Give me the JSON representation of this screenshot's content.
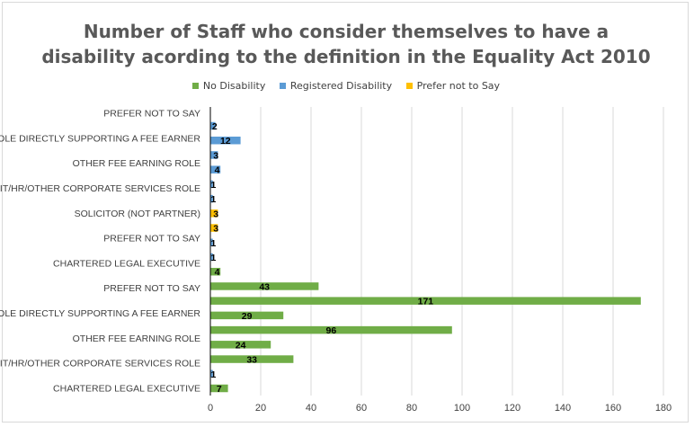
{
  "chart_data": {
    "type": "bar",
    "orientation": "horizontal",
    "title_lines": [
      "Number of Staff who consider themselves to have a",
      "disability acording to the definition in the Equality Act 2010"
    ],
    "legend_position": "top",
    "grid": true,
    "xlim": [
      0,
      180
    ],
    "x_ticks": [
      0,
      20,
      40,
      60,
      80,
      100,
      120,
      140,
      160,
      180
    ],
    "series": [
      {
        "name": "No Disability",
        "color": "#70ad47"
      },
      {
        "name": "Registered Disability",
        "color": "#5b9bd5"
      },
      {
        "name": "Prefer not to Say",
        "color": "#ffc000"
      }
    ],
    "categories": [
      {
        "label": "CHARTERED LEGAL EXECUTIVE",
        "values": [
          7,
          1,
          null
        ]
      },
      {
        "label": "IT/HR/OTHER CORPORATE SERVICES ROLE",
        "values": [
          33,
          24,
          null
        ]
      },
      {
        "label": "OTHER FEE EARNING ROLE",
        "values": [
          96,
          29,
          null
        ]
      },
      {
        "label": "ROLE DIRECTLY SUPPORTING A FEE EARNER",
        "values": [
          171,
          43,
          null
        ]
      },
      {
        "label": "PREFER NOT TO SAY",
        "values": [
          4,
          null,
          null
        ]
      },
      {
        "label": "CHARTERED LEGAL EXECUTIVE",
        "values": [
          1,
          1,
          null
        ]
      },
      {
        "label": "PREFER NOT TO SAY",
        "values": [
          3,
          3,
          null
        ]
      },
      {
        "label": "SOLICITOR (NOT PARTNER)",
        "values": [
          1,
          1,
          null
        ]
      },
      {
        "label": "IT/HR/OTHER CORPORATE SERVICES ROLE",
        "values": [
          4,
          3,
          null
        ]
      },
      {
        "label": "OTHER FEE EARNING ROLE",
        "values": [
          12,
          2,
          null
        ]
      },
      {
        "label": "ROLE DIRECTLY SUPPORTING A FEE EARNER",
        "values": [
          null,
          null,
          null
        ]
      },
      {
        "label": "PREFER NOT TO SAY",
        "values": [
          null,
          null,
          null
        ]
      }
    ],
    "bars": [
      {
        "value": 7,
        "series": 0,
        "label": "7"
      },
      {
        "value": 1,
        "series": 1,
        "label": "1"
      },
      {
        "value": 33,
        "series": 0,
        "label": "33"
      },
      {
        "value": 24,
        "series": 0,
        "label": "24"
      },
      {
        "value": 96,
        "series": 0,
        "label": "96"
      },
      {
        "value": 29,
        "series": 0,
        "label": "29"
      },
      {
        "value": 171,
        "series": 0,
        "label": "171"
      },
      {
        "value": 43,
        "series": 0,
        "label": "43"
      },
      {
        "value": 4,
        "series": 0,
        "label": "4"
      },
      {
        "value": 1,
        "series": 1,
        "label": "1"
      },
      {
        "value": 1,
        "series": 1,
        "label": "1"
      },
      {
        "value": 3,
        "series": 2,
        "label": "3"
      },
      {
        "value": 3,
        "series": 2,
        "label": "3"
      },
      {
        "value": 1,
        "series": 1,
        "label": "1"
      },
      {
        "value": 1,
        "series": 1,
        "label": "1"
      },
      {
        "value": 4,
        "series": 1,
        "label": "4"
      },
      {
        "value": 3,
        "series": 1,
        "label": "3"
      },
      {
        "value": 12,
        "series": 1,
        "label": "12"
      },
      {
        "value": 2,
        "series": 1,
        "label": "2"
      }
    ]
  }
}
